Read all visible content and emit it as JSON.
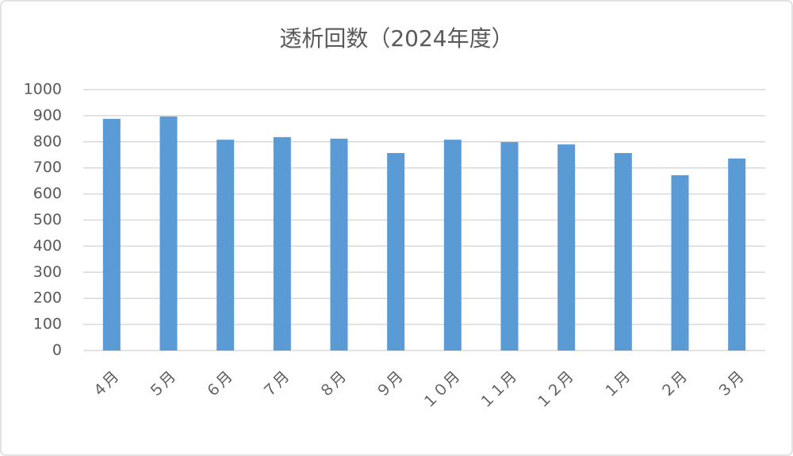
{
  "chart_data": {
    "type": "bar",
    "title": "透析回数（2024年度）",
    "categories": [
      "４月",
      "５月",
      "６月",
      "７月",
      "８月",
      "９月",
      "１０月",
      "１１月",
      "１２月",
      "１月",
      "２月",
      "３月"
    ],
    "values": [
      888,
      897,
      808,
      818,
      812,
      757,
      808,
      799,
      790,
      757,
      672,
      736
    ],
    "color": "#5b9bd5",
    "ylim": [
      0,
      1000
    ],
    "yticks": [
      0,
      100,
      200,
      300,
      400,
      500,
      600,
      700,
      800,
      900,
      1000
    ],
    "grid": true
  }
}
